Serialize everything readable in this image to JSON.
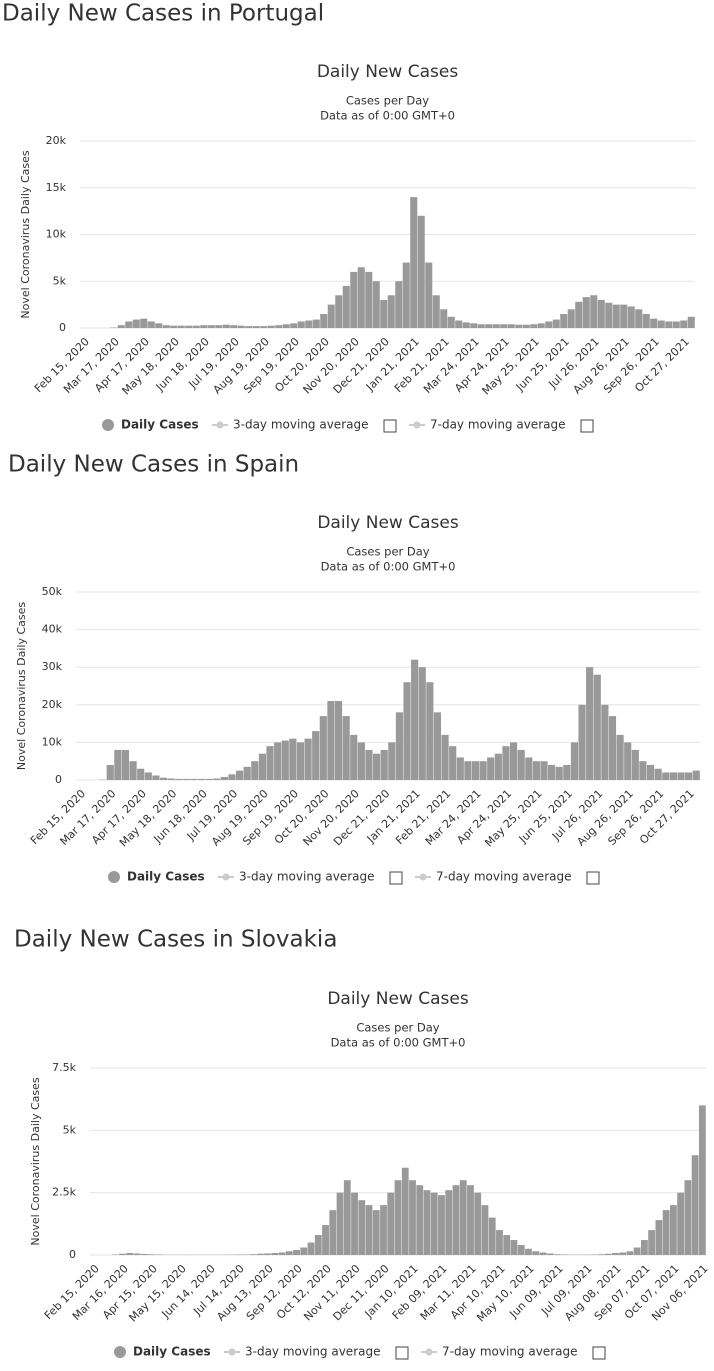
{
  "chart_data": [
    {
      "type": "bar",
      "heading": "Daily New Cases in Portugal",
      "title": "Daily New Cases",
      "subtitle": [
        "Cases per Day",
        "Data as of 0:00 GMT+0"
      ],
      "y_label": "Novel Coronavirus Daily Cases",
      "categories": [
        "Feb 15, 2020",
        null,
        null,
        null,
        "Mar 17, 2020",
        null,
        null,
        null,
        "Apr 17, 2020",
        null,
        null,
        null,
        "May 18, 2020",
        null,
        null,
        null,
        "Jun 18, 2020",
        null,
        null,
        null,
        "Jul 19, 2020",
        null,
        null,
        null,
        "Aug 19, 2020",
        null,
        null,
        null,
        "Sep 19, 2020",
        null,
        null,
        null,
        "Oct 20, 2020",
        null,
        null,
        null,
        "Nov 20, 2020",
        null,
        null,
        null,
        "Dec 21, 2020",
        null,
        null,
        null,
        "Jan 21, 2021",
        null,
        null,
        null,
        "Feb 21, 2021",
        null,
        null,
        null,
        "Mar 24, 2021",
        null,
        null,
        null,
        "Apr 24, 2021",
        null,
        null,
        null,
        "May 25, 2021",
        null,
        null,
        null,
        "Jun 25, 2021",
        null,
        null,
        null,
        "Jul 26, 2021",
        null,
        null,
        null,
        "Aug 26, 2021",
        null,
        null,
        null,
        "Sep 26, 2021",
        null,
        null,
        null,
        "Oct 27, 2021",
        null
      ],
      "series": [
        {
          "name": "Daily Cases",
          "color": "#999999",
          "values": [
            0,
            0,
            0,
            0,
            50,
            300,
            700,
            900,
            1000,
            700,
            500,
            300,
            250,
            250,
            250,
            250,
            300,
            300,
            300,
            350,
            300,
            250,
            200,
            200,
            200,
            250,
            300,
            400,
            500,
            700,
            800,
            900,
            1500,
            2500,
            3500,
            4500,
            6000,
            6500,
            6000,
            5000,
            3000,
            3500,
            5000,
            7000,
            14000,
            12000,
            7000,
            3500,
            2000,
            1200,
            800,
            600,
            500,
            400,
            400,
            400,
            400,
            400,
            350,
            350,
            400,
            500,
            700,
            900,
            1500,
            2000,
            2800,
            3300,
            3500,
            3000,
            2700,
            2500,
            2500,
            2300,
            2000,
            1500,
            1000,
            800,
            700,
            700,
            800,
            1200
          ]
        }
      ],
      "hidden_series": [
        {
          "name": "3-day moving average",
          "color": "#cccccc"
        },
        {
          "name": "7-day moving average",
          "color": "#cccccc"
        }
      ],
      "ylim": [
        0,
        20000
      ],
      "yticks": [
        0,
        {
          "value": 5000,
          "label": "5k"
        },
        {
          "value": 10000,
          "label": "10k"
        },
        {
          "value": 15000,
          "label": "15k"
        },
        {
          "value": 20000,
          "label": "20k"
        }
      ],
      "grid": true
    },
    {
      "type": "bar",
      "heading": "Daily New Cases in Spain",
      "title": "Daily New Cases",
      "subtitle": [
        "Cases per Day",
        "Data as of 0:00 GMT+0"
      ],
      "y_label": "Novel Coronavirus Daily Cases",
      "categories": [
        "Feb 15, 2020",
        null,
        null,
        null,
        "Mar 17, 2020",
        null,
        null,
        null,
        "Apr 17, 2020",
        null,
        null,
        null,
        "May 18, 2020",
        null,
        null,
        null,
        "Jun 18, 2020",
        null,
        null,
        null,
        "Jul 19, 2020",
        null,
        null,
        null,
        "Aug 19, 2020",
        null,
        null,
        null,
        "Sep 19, 2020",
        null,
        null,
        null,
        "Oct 20, 2020",
        null,
        null,
        null,
        "Nov 20, 2020",
        null,
        null,
        null,
        "Dec 21, 2020",
        null,
        null,
        null,
        "Jan 21, 2021",
        null,
        null,
        null,
        "Feb 21, 2021",
        null,
        null,
        null,
        "Mar 24, 2021",
        null,
        null,
        null,
        "Apr 24, 2021",
        null,
        null,
        null,
        "May 25, 2021",
        null,
        null,
        null,
        "Jun 25, 2021",
        null,
        null,
        null,
        "Jul 26, 2021",
        null,
        null,
        null,
        "Aug 26, 2021",
        null,
        null,
        null,
        "Sep 26, 2021",
        null,
        null,
        null,
        "Oct 27, 2021",
        null
      ],
      "series": [
        {
          "name": "Daily Cases",
          "color": "#999999",
          "values": [
            0,
            0,
            0,
            100,
            4000,
            8000,
            8000,
            5000,
            3000,
            2000,
            1200,
            600,
            400,
            300,
            300,
            300,
            300,
            300,
            400,
            800,
            1500,
            2500,
            3500,
            5000,
            7000,
            9000,
            10000,
            10500,
            11000,
            10000,
            11000,
            13000,
            17000,
            21000,
            21000,
            17000,
            12000,
            10000,
            8000,
            7000,
            8000,
            10000,
            18000,
            26000,
            32000,
            30000,
            26000,
            18000,
            12000,
            9000,
            6000,
            5000,
            5000,
            5000,
            6000,
            7000,
            9000,
            10000,
            8000,
            6000,
            5000,
            5000,
            4000,
            3500,
            4000,
            10000,
            20000,
            30000,
            28000,
            20000,
            17000,
            12000,
            10000,
            8000,
            5000,
            4000,
            3000,
            2000,
            2000,
            2000,
            2000,
            2500
          ]
        }
      ],
      "hidden_series": [
        {
          "name": "3-day moving average",
          "color": "#cccccc"
        },
        {
          "name": "7-day moving average",
          "color": "#cccccc"
        }
      ],
      "ylim": [
        0,
        50000
      ],
      "yticks": [
        0,
        {
          "value": 10000,
          "label": "10k"
        },
        {
          "value": 20000,
          "label": "20k"
        },
        {
          "value": 30000,
          "label": "30k"
        },
        {
          "value": 40000,
          "label": "40k"
        },
        {
          "value": 50000,
          "label": "50k"
        }
      ],
      "grid": true
    },
    {
      "type": "bar",
      "heading": "Daily New Cases in Slovakia",
      "title": "Daily New Cases",
      "subtitle": [
        "Cases per Day",
        "Data as of 0:00 GMT+0"
      ],
      "y_label": "Novel Coronavirus Daily Cases",
      "categories": [
        "Feb 15, 2020",
        null,
        null,
        null,
        "Mar 16, 2020",
        null,
        null,
        null,
        "Apr 15, 2020",
        null,
        null,
        null,
        "May 15, 2020",
        null,
        null,
        null,
        "Jun 14, 2020",
        null,
        null,
        null,
        "Jul 14, 2020",
        null,
        null,
        null,
        "Aug 13, 2020",
        null,
        null,
        null,
        "Sep 12, 2020",
        null,
        null,
        null,
        "Oct 12, 2020",
        null,
        null,
        null,
        "Nov 11, 2020",
        null,
        null,
        null,
        "Dec 11, 2020",
        null,
        null,
        null,
        "Jan 10, 2021",
        null,
        null,
        null,
        "Feb 09, 2021",
        null,
        null,
        null,
        "Mar 11, 2021",
        null,
        null,
        null,
        "Apr 10, 2021",
        null,
        null,
        null,
        "May 10, 2021",
        null,
        null,
        null,
        "Jun 09, 2021",
        null,
        null,
        null,
        "Jul 09, 2021",
        null,
        null,
        null,
        "Aug 08, 2021",
        null,
        null,
        null,
        "Sep 07, 2021",
        null,
        null,
        null,
        "Oct 07, 2021",
        null,
        null,
        null,
        "Nov 06, 2021"
      ],
      "series": [
        {
          "name": "Daily Cases",
          "color": "#999999",
          "values": [
            0,
            0,
            0,
            20,
            50,
            80,
            60,
            40,
            30,
            20,
            10,
            10,
            10,
            10,
            10,
            10,
            10,
            10,
            10,
            15,
            20,
            20,
            30,
            50,
            60,
            80,
            100,
            150,
            200,
            300,
            500,
            800,
            1200,
            1800,
            2500,
            3000,
            2500,
            2200,
            2000,
            1800,
            2000,
            2500,
            3000,
            3500,
            3000,
            2800,
            2600,
            2500,
            2400,
            2600,
            2800,
            3000,
            2800,
            2500,
            2000,
            1500,
            1000,
            800,
            600,
            400,
            250,
            150,
            100,
            60,
            30,
            20,
            15,
            15,
            15,
            20,
            30,
            50,
            80,
            100,
            150,
            300,
            600,
            1000,
            1400,
            1800,
            2000,
            2500,
            3000,
            4000,
            6000
          ]
        }
      ],
      "hidden_series": [
        {
          "name": "3-day moving average",
          "color": "#cccccc"
        },
        {
          "name": "7-day moving average",
          "color": "#cccccc"
        }
      ],
      "ylim": [
        0,
        7500
      ],
      "yticks": [
        0,
        {
          "value": 2500,
          "label": "2.5k"
        },
        {
          "value": 5000,
          "label": "5k"
        },
        {
          "value": 7500,
          "label": "7.5k"
        }
      ],
      "grid": true
    }
  ]
}
